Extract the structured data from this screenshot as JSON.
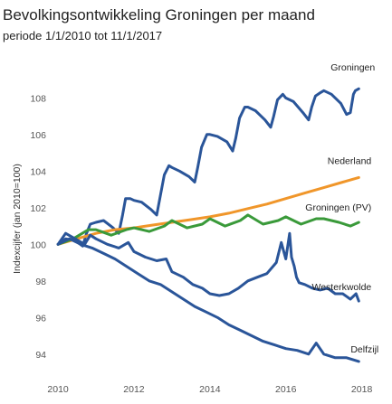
{
  "chart_data": {
    "type": "line",
    "title": "Bevolkingsontwikkeling Groningen per maand",
    "subtitle": "periode 1/1/2010 tot 11/1/2017",
    "xlabel": "",
    "ylabel": "Indexcijfer (jan 2010=100)",
    "xlim": [
      2009.95,
      2018.2
    ],
    "ylim": [
      93,
      109.5
    ],
    "x_ticks": [
      "2010",
      "2012",
      "2014",
      "2016",
      "2018"
    ],
    "y_ticks": [
      "94",
      "96",
      "98",
      "100",
      "102",
      "104",
      "106",
      "108"
    ],
    "grid": false,
    "legend": "inline labels at line ends",
    "series": [
      {
        "name": "Groningen",
        "color": "#2a5599",
        "x": [
          2010.0,
          2010.2,
          2010.45,
          2010.65,
          2010.75,
          2010.85,
          2011.0,
          2011.2,
          2011.45,
          2011.6,
          2011.7,
          2011.78,
          2011.9,
          2012.0,
          2012.2,
          2012.45,
          2012.6,
          2012.7,
          2012.8,
          2012.92,
          2013.0,
          2013.2,
          2013.45,
          2013.6,
          2013.68,
          2013.78,
          2013.92,
          2014.0,
          2014.2,
          2014.45,
          2014.6,
          2014.68,
          2014.78,
          2014.92,
          2015.0,
          2015.2,
          2015.45,
          2015.6,
          2015.68,
          2015.78,
          2015.92,
          2016.0,
          2016.2,
          2016.45,
          2016.6,
          2016.68,
          2016.78,
          2016.92,
          2017.0,
          2017.2,
          2017.45,
          2017.6,
          2017.7,
          2017.78,
          2017.83,
          2017.92
        ],
        "values": [
          100.0,
          100.3,
          100.2,
          99.9,
          100.6,
          101.1,
          101.2,
          101.3,
          100.9,
          100.6,
          101.6,
          102.5,
          102.5,
          102.4,
          102.3,
          101.9,
          101.6,
          102.7,
          103.8,
          104.3,
          104.2,
          104.0,
          103.7,
          103.4,
          104.2,
          105.3,
          106.0,
          106.0,
          105.9,
          105.6,
          105.1,
          105.8,
          106.9,
          107.5,
          107.5,
          107.3,
          106.8,
          106.4,
          107.0,
          107.9,
          108.2,
          108.0,
          107.8,
          107.2,
          106.8,
          107.5,
          108.1,
          108.3,
          108.4,
          108.2,
          107.7,
          107.1,
          107.2,
          108.2,
          108.4,
          108.5
        ]
      },
      {
        "name": "Nederland",
        "color": "#f0962a",
        "x": [
          2010.0,
          2010.5,
          2011.0,
          2011.5,
          2012.0,
          2012.5,
          2013.0,
          2013.5,
          2014.0,
          2014.5,
          2015.0,
          2015.5,
          2016.0,
          2016.5,
          2017.0,
          2017.5,
          2017.92
        ],
        "values": [
          100.0,
          100.3,
          100.6,
          100.8,
          100.9,
          101.05,
          101.2,
          101.35,
          101.5,
          101.7,
          101.95,
          102.2,
          102.5,
          102.8,
          103.1,
          103.4,
          103.65
        ]
      },
      {
        "name": "Groningen (PV)",
        "color": "#3a9a3a",
        "x": [
          2010.0,
          2010.4,
          2010.8,
          2011.0,
          2011.4,
          2011.8,
          2012.0,
          2012.4,
          2012.8,
          2013.0,
          2013.4,
          2013.8,
          2014.0,
          2014.4,
          2014.8,
          2015.0,
          2015.4,
          2015.8,
          2016.0,
          2016.4,
          2016.8,
          2017.0,
          2017.4,
          2017.7,
          2017.92
        ],
        "values": [
          100.0,
          100.3,
          100.8,
          100.8,
          100.5,
          100.8,
          100.9,
          100.7,
          101.0,
          101.3,
          100.9,
          101.1,
          101.4,
          101.0,
          101.3,
          101.6,
          101.1,
          101.3,
          101.5,
          101.1,
          101.4,
          101.4,
          101.2,
          101.0,
          101.2
        ]
      },
      {
        "name": "Westerkwolde",
        "color": "#2a5599",
        "x": [
          2010.0,
          2010.2,
          2010.45,
          2010.7,
          2010.85,
          2011.0,
          2011.3,
          2011.6,
          2011.85,
          2012.0,
          2012.3,
          2012.6,
          2012.85,
          2013.0,
          2013.3,
          2013.55,
          2013.8,
          2014.0,
          2014.25,
          2014.5,
          2014.75,
          2015.0,
          2015.25,
          2015.5,
          2015.75,
          2015.88,
          2016.0,
          2016.1,
          2016.15,
          2016.22,
          2016.28,
          2016.35,
          2016.5,
          2016.7,
          2016.9,
          2017.1,
          2017.3,
          2017.5,
          2017.7,
          2017.85,
          2017.92
        ],
        "values": [
          100.0,
          100.6,
          100.3,
          100.0,
          100.5,
          100.3,
          100.0,
          99.8,
          100.1,
          99.6,
          99.3,
          99.1,
          99.2,
          98.5,
          98.2,
          97.8,
          97.6,
          97.3,
          97.2,
          97.3,
          97.6,
          98.0,
          98.2,
          98.4,
          99.0,
          100.1,
          99.2,
          100.6,
          99.3,
          98.8,
          98.2,
          97.9,
          97.8,
          97.6,
          97.5,
          97.6,
          97.3,
          97.3,
          97.0,
          97.3,
          96.9
        ]
      },
      {
        "name": "Delfzijl",
        "color": "#2a5599",
        "x": [
          2010.0,
          2010.3,
          2010.6,
          2010.9,
          2011.2,
          2011.5,
          2011.8,
          2012.1,
          2012.4,
          2012.7,
          2013.0,
          2013.3,
          2013.6,
          2013.9,
          2014.2,
          2014.5,
          2014.8,
          2015.1,
          2015.4,
          2015.7,
          2016.0,
          2016.3,
          2016.6,
          2016.8,
          2017.0,
          2017.3,
          2017.6,
          2017.92
        ],
        "values": [
          100.0,
          100.3,
          100.0,
          99.8,
          99.5,
          99.2,
          98.8,
          98.4,
          98.0,
          97.8,
          97.4,
          97.0,
          96.6,
          96.3,
          96.0,
          95.6,
          95.3,
          95.0,
          94.7,
          94.5,
          94.3,
          94.2,
          94.0,
          94.6,
          94.0,
          93.8,
          93.8,
          93.6
        ]
      }
    ]
  }
}
